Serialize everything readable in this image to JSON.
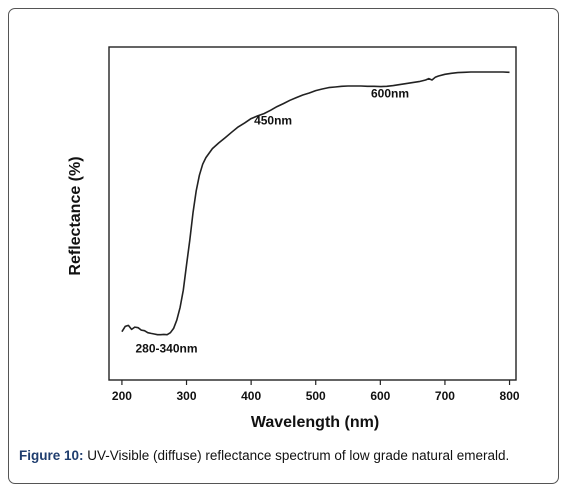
{
  "caption": {
    "label": "Figure 10:",
    "text": " UV-Visible (diffuse) reflectance spectrum of low grade natural emerald."
  },
  "chart_data": {
    "type": "line",
    "title": "",
    "xlabel": "Wavelength (nm)",
    "ylabel": "Reflectance (%)",
    "xlim": [
      180,
      810
    ],
    "ylim": [
      0,
      100
    ],
    "xticks": [
      200,
      300,
      400,
      500,
      600,
      700,
      800
    ],
    "xtick_labels": [
      "200",
      "300",
      "400",
      "500",
      "600",
      "700",
      "800"
    ],
    "y_ticks_shown": false,
    "grid": false,
    "legend": "none",
    "line_color": "#222222",
    "series": [
      {
        "x": [
          200,
          205,
          210,
          215,
          220,
          225,
          230,
          235,
          240,
          245,
          250,
          255,
          260,
          265,
          270,
          275,
          280,
          285,
          290,
          295,
          300,
          305,
          310,
          315,
          320,
          325,
          330,
          340,
          350,
          360,
          370,
          380,
          390,
          400,
          410,
          420,
          430,
          440,
          450,
          460,
          470,
          480,
          490,
          500,
          510,
          520,
          530,
          540,
          550,
          560,
          570,
          580,
          590,
          600,
          610,
          620,
          630,
          640,
          650,
          660,
          670,
          675,
          680,
          685,
          690,
          700,
          710,
          720,
          730,
          740,
          750,
          760,
          770,
          780,
          790,
          800
        ],
        "y": [
          14.5,
          16.1,
          16.4,
          15.2,
          15.9,
          15.7,
          15.0,
          14.8,
          14.2,
          14.0,
          13.8,
          13.6,
          13.6,
          13.7,
          13.6,
          14.2,
          15.5,
          18.0,
          21.8,
          27.0,
          34.5,
          42.0,
          50.2,
          56.8,
          61.5,
          64.8,
          66.8,
          69.5,
          71.2,
          72.8,
          74.4,
          76.0,
          77.2,
          78.5,
          79.3,
          80.0,
          81.0,
          82.1,
          83.0,
          84.0,
          84.8,
          85.6,
          86.2,
          86.9,
          87.4,
          87.8,
          88.0,
          88.2,
          88.3,
          88.3,
          88.3,
          88.2,
          88.2,
          88.1,
          88.2,
          88.4,
          88.7,
          89.0,
          89.3,
          89.6,
          90.1,
          90.5,
          90.1,
          90.9,
          91.3,
          91.8,
          92.1,
          92.3,
          92.4,
          92.5,
          92.5,
          92.5,
          92.5,
          92.5,
          92.5,
          92.4
        ]
      }
    ],
    "annotations": [
      {
        "text": "280-340nm",
        "x": 269,
        "y": 8.2
      },
      {
        "text": "450nm",
        "x": 434,
        "y": 76.8
      },
      {
        "text": "600nm",
        "x": 615,
        "y": 84.9
      }
    ]
  }
}
